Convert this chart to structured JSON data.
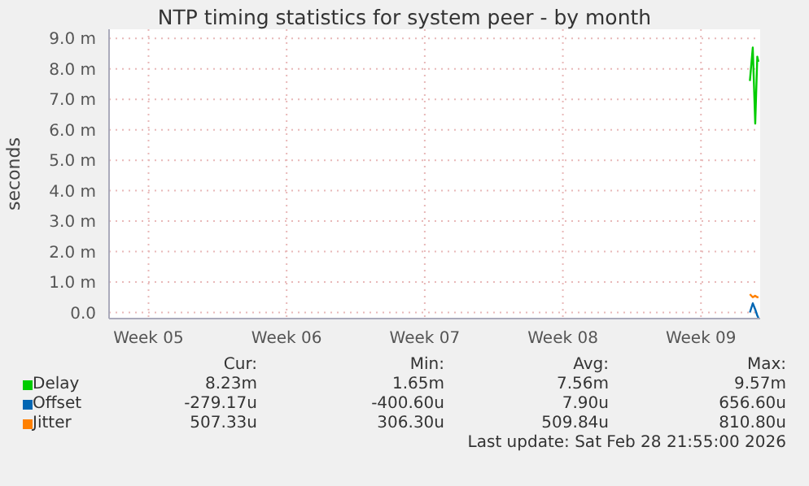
{
  "chart_data": {
    "type": "line",
    "title": "NTP timing statistics for system peer - by month",
    "ylabel": "seconds",
    "xlim": [
      "2026-01-27",
      "2026-03-01"
    ],
    "xticks": [
      {
        "value": "2026-01-29",
        "label": "Week 05"
      },
      {
        "value": "2026-02-05",
        "label": "Week 06"
      },
      {
        "value": "2026-02-12",
        "label": "Week 07"
      },
      {
        "value": "2026-02-19",
        "label": "Week 08"
      },
      {
        "value": "2026-02-26",
        "label": "Week 09"
      }
    ],
    "ylim": [
      -0.2,
      9.3
    ],
    "yticks": [
      {
        "value": 0,
        "label": "0.0"
      },
      {
        "value": 1,
        "label": "1.0 m"
      },
      {
        "value": 2,
        "label": "2.0 m"
      },
      {
        "value": 3,
        "label": "3.0 m"
      },
      {
        "value": 4,
        "label": "4.0 m"
      },
      {
        "value": 5,
        "label": "5.0 m"
      },
      {
        "value": 6,
        "label": "6.0 m"
      },
      {
        "value": 7,
        "label": "7.0 m"
      },
      {
        "value": 8,
        "label": "8.0 m"
      },
      {
        "value": 9,
        "label": "9.0 m"
      }
    ],
    "series": [
      {
        "name": "Delay",
        "color": "#00cc00",
        "x": [
          "2026-02-28T11:30",
          "2026-02-28T15:00",
          "2026-02-28T18:00",
          "2026-02-28T20:30",
          "2026-02-28T21:55"
        ],
        "values": [
          7.6,
          8.7,
          6.2,
          8.4,
          8.23
        ]
      },
      {
        "name": "Offset",
        "color": "#0066b3",
        "x": [
          "2026-02-28T11:30",
          "2026-02-28T15:00",
          "2026-02-28T18:00",
          "2026-02-28T20:30",
          "2026-02-28T21:55"
        ],
        "values": [
          0.0,
          0.3,
          0.1,
          -0.1,
          -0.18
        ]
      },
      {
        "name": "Jitter",
        "color": "#ff8000",
        "x": [
          "2026-02-28T11:30",
          "2026-02-28T15:00",
          "2026-02-28T18:00",
          "2026-02-28T20:30",
          "2026-02-28T21:55"
        ],
        "values": [
          0.6,
          0.5,
          0.55,
          0.5,
          0.51
        ]
      }
    ],
    "annotations": [
      "Cur:",
      "Min:",
      "Avg:",
      "Max:",
      "8.23m",
      "1.65m",
      "7.56m",
      "9.57m",
      "-279.17u",
      "-400.60u",
      "7.90u",
      "656.60u",
      "507.33u",
      "306.30u",
      "509.84u",
      "810.80u",
      "Last update: Sat Feb 28 21:55:00 2026"
    ],
    "grid": true,
    "legend": "bottom",
    "marker": "none",
    "line_style": "solid"
  }
}
